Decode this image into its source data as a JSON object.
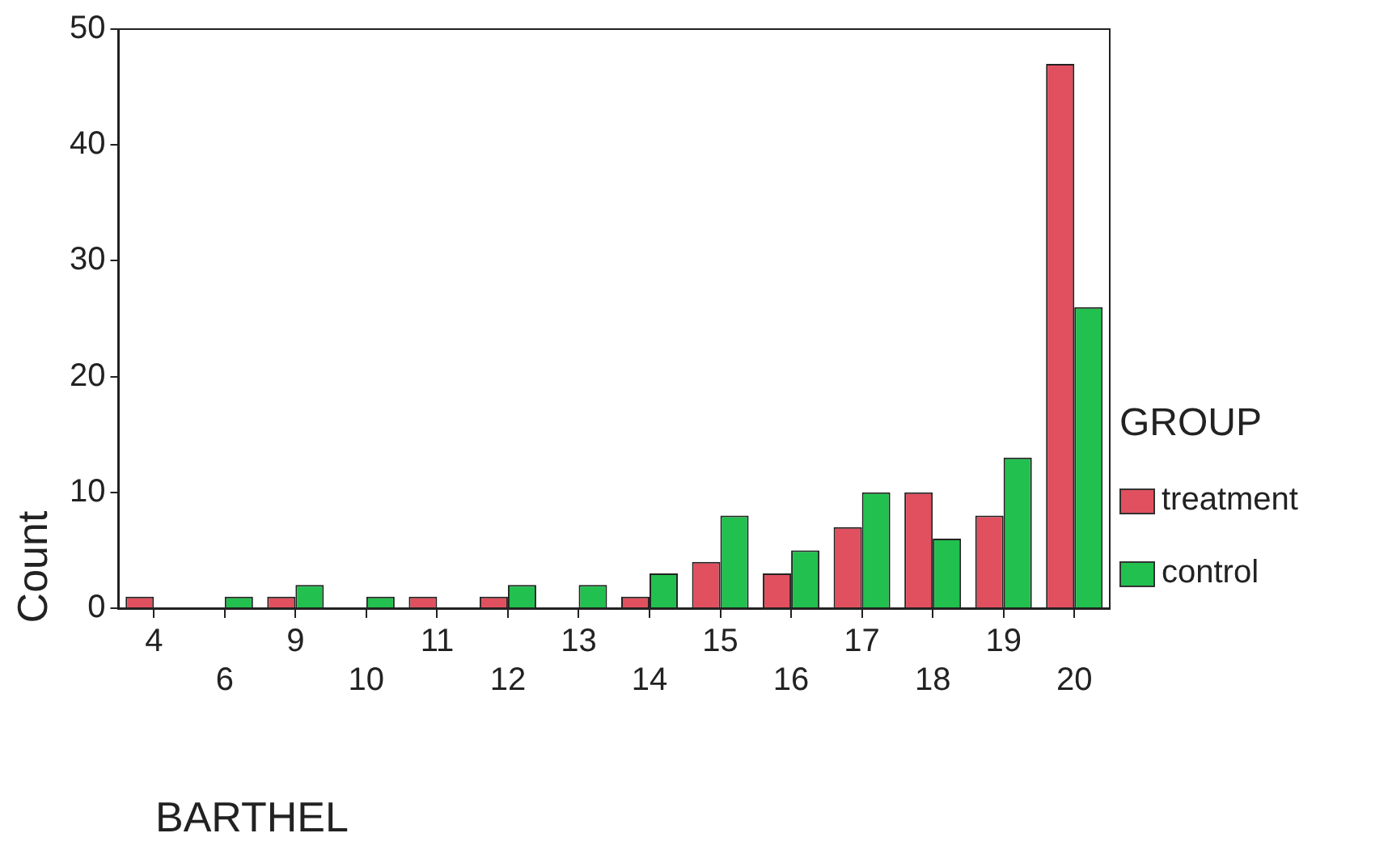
{
  "chart_data": {
    "type": "bar",
    "xlabel": "BARTHEL",
    "ylabel": "Count",
    "legend_title": "GROUP",
    "categories": [
      "4",
      "6",
      "9",
      "10",
      "11",
      "12",
      "13",
      "14",
      "15",
      "16",
      "17",
      "18",
      "19",
      "20"
    ],
    "series": [
      {
        "name": "treatment",
        "color": "#e0505e",
        "values": [
          1,
          0,
          1,
          0,
          1,
          1,
          0,
          1,
          4,
          3,
          7,
          10,
          8,
          47
        ]
      },
      {
        "name": "control",
        "color": "#22c04e",
        "values": [
          0,
          1,
          2,
          1,
          0,
          2,
          2,
          3,
          8,
          5,
          10,
          6,
          13,
          26
        ]
      }
    ],
    "ylim": [
      0,
      50
    ],
    "yticks": [
      0,
      10,
      20,
      30,
      40,
      50
    ],
    "grid": false,
    "legend": "right"
  }
}
